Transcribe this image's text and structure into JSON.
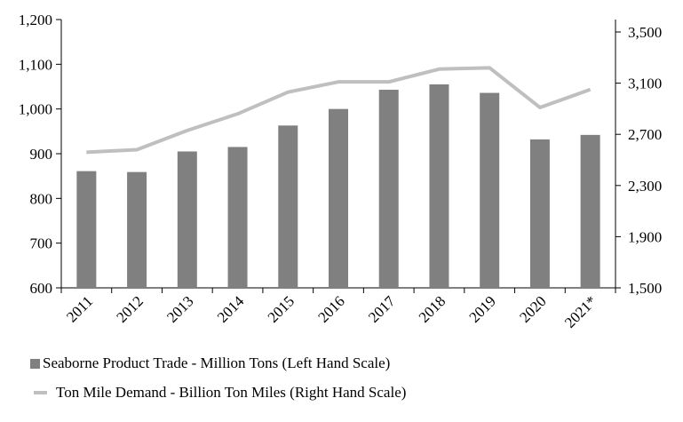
{
  "chart_data": {
    "type": "bar",
    "categories": [
      "2011",
      "2012",
      "2013",
      "2014",
      "2015",
      "2016",
      "2017",
      "2018",
      "2019",
      "2020",
      "2021*"
    ],
    "series": [
      {
        "name": "Seaborne Product Trade - Million Tons (Left Hand Scale)",
        "type": "bar",
        "axis": "left",
        "color": "#808080",
        "values": [
          861,
          859,
          905,
          915,
          963,
          1000,
          1043,
          1055,
          1036,
          932,
          942
        ]
      },
      {
        "name": "Ton Mile Demand - Billion Ton Miles (Right Hand Scale)",
        "type": "line",
        "axis": "right",
        "color": "#bfbfbf",
        "values": [
          2560,
          2580,
          2730,
          2860,
          3030,
          3110,
          3110,
          3210,
          3220,
          2910,
          3050
        ]
      }
    ],
    "y_left": {
      "ylim": [
        600,
        1200
      ],
      "ticks": [
        600,
        700,
        800,
        900,
        1000,
        1100,
        1200
      ],
      "tick_labels": [
        "600",
        "700",
        "800",
        "900",
        "1,000",
        "1,100",
        "1,200"
      ]
    },
    "y_right": {
      "ylim": [
        1500,
        3600
      ],
      "ticks": [
        1500,
        1900,
        2300,
        2700,
        3100,
        3500
      ],
      "tick_labels": [
        "1,500",
        "1,900",
        "2,300",
        "2,700",
        "3,100",
        "3,500"
      ]
    },
    "grid": false,
    "legend_position": "bottom"
  }
}
